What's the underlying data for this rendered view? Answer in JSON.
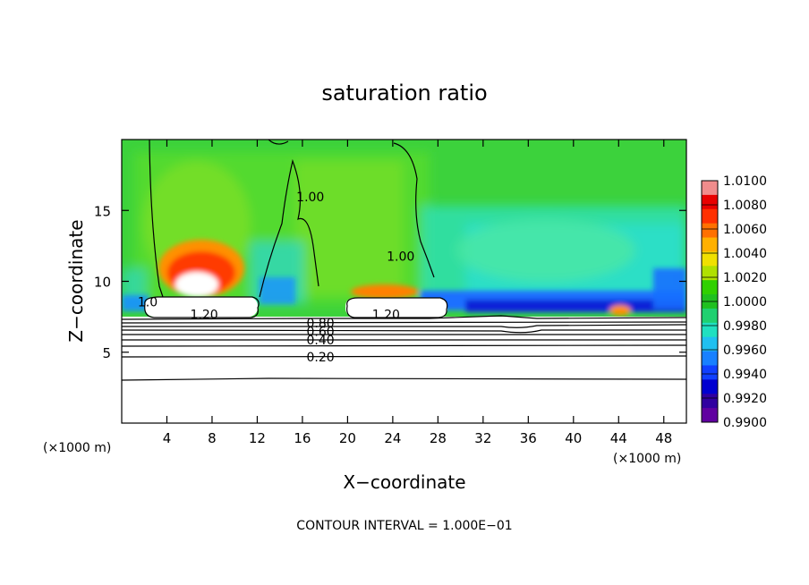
{
  "chart_data": {
    "type": "heatmap",
    "title": "saturation ratio",
    "xlabel": "X−coordinate",
    "ylabel": "Z−coordinate",
    "x_unit_left": "(×1000 m)",
    "x_unit_right": "(×1000 m)",
    "footer": "CONTOUR INTERVAL = 1.000E−01",
    "xlim": [
      0,
      50
    ],
    "ylim": [
      0,
      20
    ],
    "x_ticks": [
      4,
      8,
      12,
      16,
      20,
      24,
      28,
      32,
      36,
      40,
      44,
      48
    ],
    "x_tick_labels": [
      "4",
      "8",
      "12",
      "16",
      "20",
      "24",
      "28",
      "32",
      "36",
      "40",
      "44",
      "48"
    ],
    "y_ticks": [
      5,
      10,
      15
    ],
    "y_tick_labels": [
      "5",
      "10",
      "15"
    ],
    "colorbar": {
      "min": 0.99,
      "max": 1.01,
      "labels": [
        "1.0100",
        "1.0080",
        "1.0060",
        "1.0040",
        "1.0020",
        "1.0000",
        "0.9980",
        "0.9960",
        "0.9940",
        "0.9920",
        "0.9900"
      ],
      "colors": [
        "#f08c8c",
        "#e80000",
        "#ff3000",
        "#ff7000",
        "#ffb000",
        "#f0e000",
        "#b0e000",
        "#30d000",
        "#20c020",
        "#20d070",
        "#20e0c0",
        "#20c0f0",
        "#1880ff",
        "#1040ff",
        "#0000d0",
        "#3000a0",
        "#6000a0"
      ]
    },
    "contour_labels": [
      {
        "text": "1.20",
        "x": 7.3,
        "z": 7.6
      },
      {
        "text": "1.20",
        "x": 23.4,
        "z": 7.6
      },
      {
        "text": "0.80",
        "x": 17.6,
        "z": 7.0
      },
      {
        "text": "0.60",
        "x": 17.6,
        "z": 6.4
      },
      {
        "text": "0.40",
        "x": 17.6,
        "z": 5.8
      },
      {
        "text": "0.20",
        "x": 17.6,
        "z": 4.6
      },
      {
        "text": "1.00",
        "x": 16.7,
        "z": 15.9
      },
      {
        "text": "1.00",
        "x": 24.7,
        "z": 11.7
      },
      {
        "text": "1.0",
        "x": 2.3,
        "z": 8.5
      }
    ],
    "grid": false
  }
}
